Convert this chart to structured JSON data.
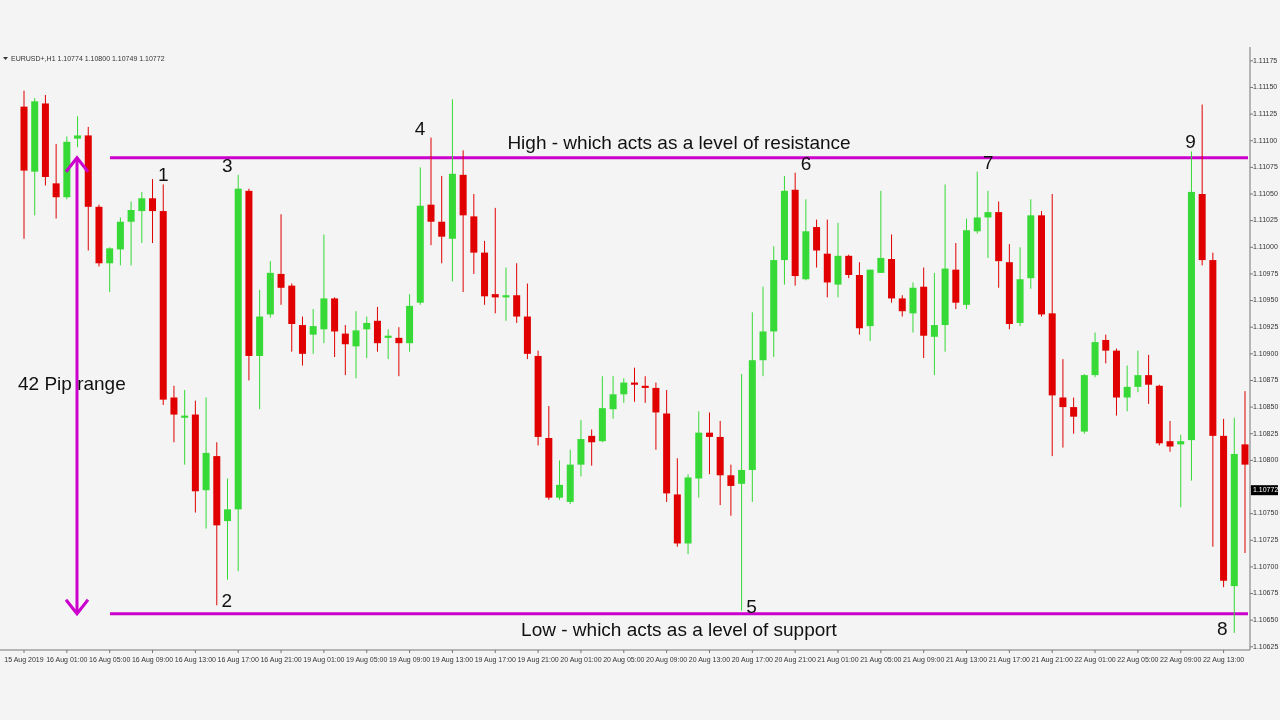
{
  "chart_data": {
    "type": "candlestick",
    "title": "EURUSD+,H1 1.10774 1.10800 1.10749 1.10772",
    "categories": [
      "15 Aug 2019",
      null,
      null,
      null,
      "16 Aug 01:00",
      null,
      null,
      null,
      "16 Aug 05:00",
      null,
      null,
      null,
      "16 Aug 09:00",
      null,
      null,
      null,
      "16 Aug 13:00",
      null,
      null,
      null,
      "16 Aug 17:00",
      null,
      null,
      null,
      "16 Aug 21:00",
      null,
      null,
      null,
      "19 Aug 01:00",
      null,
      null,
      null,
      "19 Aug 05:00",
      null,
      null,
      null,
      "19 Aug 09:00",
      null,
      null,
      null,
      "19 Aug 13:00",
      null,
      null,
      null,
      "19 Aug 17:00",
      null,
      null,
      null,
      "19 Aug 21:00",
      null,
      null,
      null,
      "20 Aug 01:00",
      null,
      null,
      null,
      "20 Aug 05:00",
      null,
      null,
      null,
      "20 Aug 09:00",
      null,
      null,
      null,
      "20 Aug 13:00",
      null,
      null,
      null,
      "20 Aug 17:00",
      null,
      null,
      null,
      "20 Aug 21:00",
      null,
      null,
      null,
      "21 Aug 01:00",
      null,
      null,
      null,
      "21 Aug 05:00",
      null,
      null,
      null,
      "21 Aug 09:00",
      null,
      null,
      null,
      "21 Aug 13:00",
      null,
      null,
      null,
      "21 Aug 17:00",
      null,
      null,
      null,
      "21 Aug 21:00",
      null,
      null,
      null,
      "22 Aug 01:00",
      null,
      null,
      null,
      "22 Aug 05:00",
      null,
      null,
      null,
      "22 Aug 09:00",
      null,
      null,
      null,
      "22 Aug 13:00",
      null,
      null
    ],
    "ohlc": [
      [
        1.11132,
        1.11147,
        1.11008,
        1.11072
      ],
      [
        1.11071,
        1.1114,
        1.1103,
        1.11137
      ],
      [
        1.11135,
        1.11143,
        1.11058,
        1.11066
      ],
      [
        1.1106,
        1.11097,
        1.11027,
        1.11047
      ],
      [
        1.11047,
        1.11104,
        1.11045,
        1.11099
      ],
      [
        1.11102,
        1.11123,
        1.11094,
        1.11105
      ],
      [
        1.11105,
        1.11113,
        1.10997,
        1.11038
      ],
      [
        1.11038,
        1.1104,
        1.10982,
        1.10985
      ],
      [
        1.10985,
        1.11,
        1.10958,
        1.10999
      ],
      [
        1.10998,
        1.11028,
        1.10983,
        1.11024
      ],
      [
        1.11024,
        1.11043,
        1.10983,
        1.11035
      ],
      [
        1.11034,
        1.11052,
        1.11004,
        1.11046
      ],
      [
        1.11046,
        1.11064,
        1.11004,
        1.11034
      ],
      [
        1.11034,
        1.11059,
        1.10852,
        1.10857
      ],
      [
        1.10859,
        1.1087,
        1.10817,
        1.10843
      ],
      [
        1.1084,
        1.10866,
        1.10796,
        1.10842
      ],
      [
        1.10843,
        1.10856,
        1.10751,
        1.10771
      ],
      [
        1.10772,
        1.10859,
        1.10736,
        1.10807
      ],
      [
        1.10804,
        1.10817,
        1.10664,
        1.10739
      ],
      [
        1.10743,
        1.10783,
        1.10688,
        1.10754
      ],
      [
        1.10754,
        1.11068,
        1.10696,
        1.11055
      ],
      [
        1.11053,
        1.11055,
        1.10875,
        1.10898
      ],
      [
        1.10898,
        1.1096,
        1.10848,
        1.10935
      ],
      [
        1.10937,
        1.10987,
        1.10934,
        1.10976
      ],
      [
        1.10975,
        1.11031,
        1.10946,
        1.10962
      ],
      [
        1.10964,
        1.10966,
        1.10902,
        1.10928
      ],
      [
        1.10927,
        1.10935,
        1.10889,
        1.109
      ],
      [
        1.10918,
        1.10942,
        1.109,
        1.10926
      ],
      [
        1.10923,
        1.11012,
        1.1091,
        1.10952
      ],
      [
        1.10952,
        1.10953,
        1.10897,
        1.10921
      ],
      [
        1.10919,
        1.10927,
        1.1088,
        1.10909
      ],
      [
        1.10907,
        1.1094,
        1.10877,
        1.10922
      ],
      [
        1.10923,
        1.10935,
        1.10896,
        1.10929
      ],
      [
        1.10931,
        1.10944,
        1.10902,
        1.1091
      ],
      [
        1.10915,
        1.10923,
        1.10895,
        1.10917
      ],
      [
        1.10915,
        1.10925,
        1.10879,
        1.1091
      ],
      [
        1.1091,
        1.10956,
        1.10902,
        1.10945
      ],
      [
        1.10948,
        1.11075,
        1.10946,
        1.11039
      ],
      [
        1.1104,
        1.11103,
        1.11002,
        1.11024
      ],
      [
        1.11024,
        1.11067,
        1.10985,
        1.1101
      ],
      [
        1.11008,
        1.11139,
        1.10968,
        1.11069
      ],
      [
        1.11068,
        1.11091,
        1.10958,
        1.1103
      ],
      [
        1.11029,
        1.1105,
        1.10975,
        1.10995
      ],
      [
        1.10995,
        1.11006,
        1.10946,
        1.10954
      ],
      [
        1.10956,
        1.11037,
        1.10938,
        1.10953
      ],
      [
        1.10953,
        1.10981,
        1.10931,
        1.10955
      ],
      [
        1.10955,
        1.10985,
        1.10929,
        1.10935
      ],
      [
        1.10935,
        1.10966,
        1.10895,
        1.109
      ],
      [
        1.10898,
        1.10903,
        1.10814,
        1.10822
      ],
      [
        1.10821,
        1.10851,
        1.10763,
        1.10765
      ],
      [
        1.10765,
        1.108,
        1.10763,
        1.10777
      ],
      [
        1.10761,
        1.1081,
        1.10759,
        1.10796
      ],
      [
        1.10796,
        1.10838,
        1.10785,
        1.1082
      ],
      [
        1.10823,
        1.10829,
        1.10795,
        1.10817
      ],
      [
        1.10818,
        1.10879,
        1.10817,
        1.10849
      ],
      [
        1.10848,
        1.10879,
        1.10839,
        1.10862
      ],
      [
        1.10862,
        1.10877,
        1.10854,
        1.10873
      ],
      [
        1.10873,
        1.10887,
        1.10855,
        1.10871
      ],
      [
        1.1087,
        1.10879,
        1.10854,
        1.10868
      ],
      [
        1.10868,
        1.10873,
        1.1081,
        1.10845
      ],
      [
        1.10844,
        1.10866,
        1.10761,
        1.10769
      ],
      [
        1.10768,
        1.10802,
        1.10719,
        1.10722
      ],
      [
        1.10722,
        1.10787,
        1.10712,
        1.10784
      ],
      [
        1.10783,
        1.10846,
        1.10765,
        1.10826
      ],
      [
        1.10826,
        1.10845,
        1.10787,
        1.10822
      ],
      [
        1.10822,
        1.10837,
        1.10758,
        1.10786
      ],
      [
        1.10786,
        1.10796,
        1.10748,
        1.10776
      ],
      [
        1.10778,
        1.10881,
        1.10659,
        1.10791
      ],
      [
        1.10791,
        1.10939,
        1.10761,
        1.10894
      ],
      [
        1.10894,
        1.10963,
        1.10879,
        1.10921
      ],
      [
        1.10921,
        1.11001,
        1.10897,
        1.10988
      ],
      [
        1.10988,
        1.11067,
        1.10965,
        1.11053
      ],
      [
        1.11054,
        1.1107,
        1.10964,
        1.10973
      ],
      [
        1.1097,
        1.11045,
        1.10969,
        1.11015
      ],
      [
        1.11019,
        1.11026,
        1.10981,
        1.10997
      ],
      [
        1.10994,
        1.11026,
        1.10953,
        1.10967
      ],
      [
        1.10965,
        1.11023,
        1.10953,
        1.10992
      ],
      [
        1.10992,
        1.10993,
        1.10971,
        1.10974
      ],
      [
        1.10974,
        1.10986,
        1.10918,
        1.10924
      ],
      [
        1.10926,
        1.10979,
        1.10912,
        1.10979
      ],
      [
        1.10976,
        1.11053,
        1.10976,
        1.1099
      ],
      [
        1.10989,
        1.11012,
        1.10948,
        1.10952
      ],
      [
        1.10952,
        1.10955,
        1.10935,
        1.1094
      ],
      [
        1.10938,
        1.10967,
        1.1092,
        1.10962
      ],
      [
        1.10963,
        1.10981,
        1.10896,
        1.10917
      ],
      [
        1.10916,
        1.10976,
        1.1088,
        1.10927
      ],
      [
        1.10927,
        1.11059,
        1.10902,
        1.1098
      ],
      [
        1.10979,
        1.11004,
        1.10942,
        1.10948
      ],
      [
        1.10946,
        1.11027,
        1.10942,
        1.11016
      ],
      [
        1.11015,
        1.11071,
        1.11013,
        1.11028
      ],
      [
        1.11028,
        1.11053,
        1.1099,
        1.11033
      ],
      [
        1.11033,
        1.11043,
        1.10962,
        1.10987
      ],
      [
        1.10986,
        1.11003,
        1.10923,
        1.10928
      ],
      [
        1.10929,
        1.11,
        1.10926,
        1.1097
      ],
      [
        1.10971,
        1.11045,
        1.10961,
        1.1103
      ],
      [
        1.1103,
        1.11034,
        1.10935,
        1.10937
      ],
      [
        1.10938,
        1.1105,
        1.10804,
        1.10861
      ],
      [
        1.10859,
        1.10895,
        1.10812,
        1.1085
      ],
      [
        1.1085,
        1.10859,
        1.10825,
        1.10841
      ],
      [
        1.10827,
        1.10881,
        1.10825,
        1.1088
      ],
      [
        1.1088,
        1.1092,
        1.10878,
        1.10911
      ],
      [
        1.10913,
        1.10918,
        1.10891,
        1.10903
      ],
      [
        1.10903,
        1.10905,
        1.10842,
        1.10859
      ],
      [
        1.10859,
        1.10889,
        1.10846,
        1.10869
      ],
      [
        1.10869,
        1.10903,
        1.10864,
        1.1088
      ],
      [
        1.1088,
        1.10899,
        1.10853,
        1.10871
      ],
      [
        1.1087,
        1.10871,
        1.10814,
        1.10816
      ],
      [
        1.10818,
        1.10837,
        1.10808,
        1.10813
      ],
      [
        1.10815,
        1.10824,
        1.10756,
        1.10818
      ],
      [
        1.10819,
        1.1109,
        1.10781,
        1.11052
      ],
      [
        1.1105,
        1.11134,
        1.10983,
        1.10988
      ],
      [
        1.10988,
        1.10995,
        1.10719,
        1.10823
      ],
      [
        1.10823,
        1.10839,
        1.10681,
        1.10687
      ],
      [
        1.10682,
        1.1084,
        1.10638,
        1.10806
      ],
      [
        1.10815,
        1.10865,
        1.10713,
        1.10796
      ]
    ],
    "colors": [
      "#e00000",
      "#36d936",
      "#e00000",
      "#e00000",
      "#36d936",
      "#36d936",
      "#e00000",
      "#e00000",
      "#36d936",
      "#36d936",
      "#36d936",
      "#36d936",
      "#e00000",
      "#e00000",
      "#e00000",
      "#36d936",
      "#e00000",
      "#36d936",
      "#e00000",
      "#36d936",
      "#36d936",
      "#e00000",
      "#36d936",
      "#36d936",
      "#e00000",
      "#e00000",
      "#e00000",
      "#36d936",
      "#36d936",
      "#e00000",
      "#e00000",
      "#36d936",
      "#36d936",
      "#e00000",
      "#36d936",
      "#e00000",
      "#36d936",
      "#36d936",
      "#e00000",
      "#e00000",
      "#36d936",
      "#e00000",
      "#e00000",
      "#e00000",
      "#e00000",
      "#36d936",
      "#e00000",
      "#e00000",
      "#e00000",
      "#e00000",
      "#36d936",
      "#36d936",
      "#36d936",
      "#e00000",
      "#36d936",
      "#36d936",
      "#36d936",
      "#e00000",
      "#e00000",
      "#e00000",
      "#e00000",
      "#e00000",
      "#36d936",
      "#36d936",
      "#e00000",
      "#e00000",
      "#e00000",
      "#36d936",
      "#36d936",
      "#36d936",
      "#36d936",
      "#36d936",
      "#e00000",
      "#36d936",
      "#e00000",
      "#e00000",
      "#36d936",
      "#e00000",
      "#e00000",
      "#36d936",
      "#36d936",
      "#e00000",
      "#e00000",
      "#36d936",
      "#e00000",
      "#36d936",
      "#36d936",
      "#e00000",
      "#36d936",
      "#36d936",
      "#36d936",
      "#e00000",
      "#e00000",
      "#36d936",
      "#36d936",
      "#e00000",
      "#e00000",
      "#e00000",
      "#e00000",
      "#36d936",
      "#36d936",
      "#e00000",
      "#e00000",
      "#36d936",
      "#36d936",
      "#e00000",
      "#e00000",
      "#e00000",
      "#36d936",
      "#36d936",
      "#e00000",
      "#e00000",
      "#e00000",
      "#36d936",
      "#e00000"
    ],
    "ylim": [
      1.10622,
      1.11188
    ],
    "yticks": [
      1.10625,
      {
        "value": 1.1065,
        "label": "1.10650"
      },
      1.10675,
      {
        "value": 1.107,
        "label": "1.10700"
      },
      1.10725,
      {
        "value": 1.1075,
        "label": "1.10750"
      },
      {
        "value": 1.10775,
        "label": null
      },
      {
        "value": 1.108,
        "label": "1.10800"
      },
      1.10825,
      {
        "value": 1.1085,
        "label": "1.10850"
      },
      1.10875,
      {
        "value": 1.109,
        "label": "1.10900"
      },
      1.10925,
      {
        "value": 1.1095,
        "label": "1.10950"
      },
      1.10975,
      {
        "value": 1.11,
        "label": "1.11000"
      },
      1.11025,
      {
        "value": 1.1105,
        "label": "1.11050"
      },
      1.11075,
      {
        "value": 1.111,
        "label": "1.11100"
      },
      1.11125,
      {
        "value": 1.1115,
        "label": "1.11150"
      },
      1.11175
    ],
    "ref_lines": [
      {
        "axis": "y",
        "value": 1.11084,
        "label": "High - which acts as a level of resistance",
        "color": "#cc00cc"
      },
      {
        "axis": "y",
        "value": 1.10656,
        "label": "Low - which acts as a level of support",
        "color": "#cc00cc"
      }
    ],
    "annotations": [
      "42 Pip range",
      "1",
      "2",
      "3",
      "4",
      "5",
      "6",
      "7",
      "8",
      "9",
      {
        "text": "1.10772",
        "y": 1.10772
      }
    ],
    "grid": false
  }
}
